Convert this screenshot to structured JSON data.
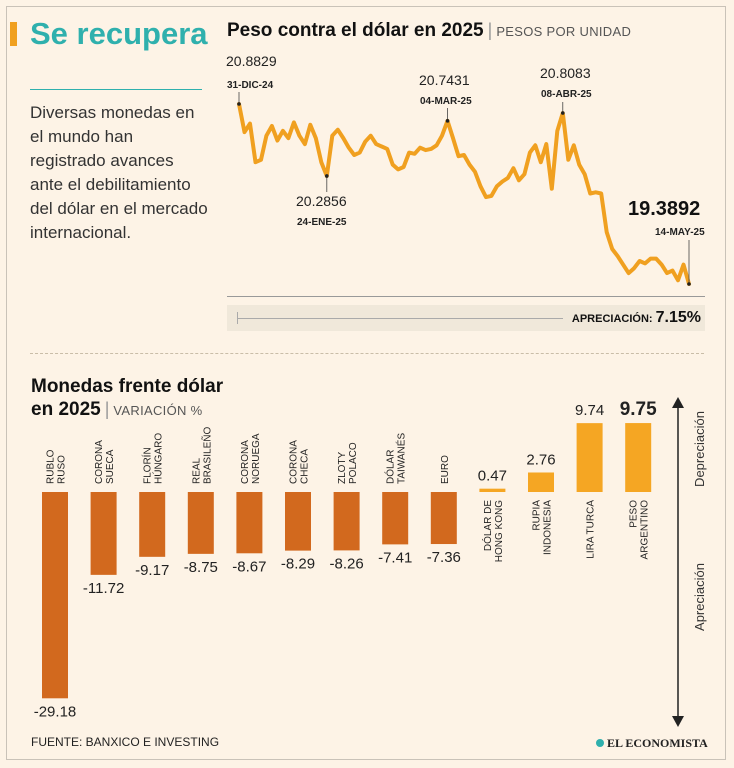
{
  "hero": {
    "title": "Se recupera",
    "description": "Diversas monedas en el mundo han registrado avances ante el debilitamiento del dólar en el mercado internacional."
  },
  "line_chart": {
    "title": "Peso contra el dólar en 2025",
    "subtitle": "PESOS POR UNIDAD",
    "annotations": [
      {
        "value": "20.8829",
        "date": "31-DIC-24"
      },
      {
        "value": "20.2856",
        "date": "24-ENE-25"
      },
      {
        "value": "20.7431",
        "date": "04-MAR-25"
      },
      {
        "value": "20.8083",
        "date": "08-ABR-25"
      },
      {
        "value": "19.3892",
        "date": "14-MAY-25"
      }
    ],
    "appreciation_label": "APRECIACIÓN:",
    "appreciation_value": "7.15%"
  },
  "bar_chart": {
    "title_line1": "Monedas frente dólar",
    "title_line2": "en 2025",
    "subtitle": "VARIACIÓN %",
    "up_label": "Depreciación",
    "down_label": "Apreciación"
  },
  "chart_data": [
    {
      "type": "line",
      "title": "Peso contra el dólar en 2025",
      "ylabel": "PESOS POR UNIDAD",
      "series": [
        {
          "values": [
            20.8829,
            20.65,
            20.72,
            20.4,
            20.42,
            20.62,
            20.7,
            20.58,
            20.66,
            20.6,
            20.73,
            20.62,
            20.55,
            20.71,
            20.6,
            20.4,
            20.2856,
            20.62,
            20.67,
            20.6,
            20.52,
            20.46,
            20.48,
            20.57,
            20.62,
            20.55,
            20.53,
            20.51,
            20.38,
            20.34,
            20.36,
            20.48,
            20.47,
            20.52,
            20.5,
            20.51,
            20.54,
            20.62,
            20.7431,
            20.6,
            20.45,
            20.46,
            20.38,
            20.32,
            20.2,
            20.11,
            20.12,
            20.2,
            20.24,
            20.27,
            20.35,
            20.25,
            20.3,
            20.48,
            20.54,
            20.4,
            20.55,
            20.18,
            20.66,
            20.8083,
            20.42,
            20.54,
            20.38,
            20.3,
            20.14,
            20.15,
            20.14,
            19.82,
            19.68,
            19.62,
            19.55,
            19.48,
            19.52,
            19.58,
            19.56,
            19.6,
            19.6,
            19.55,
            19.48,
            19.5,
            19.42,
            19.55,
            19.3892
          ]
        }
      ]
    },
    {
      "type": "bar",
      "title": "Monedas frente dólar en 2025",
      "ylabel": "VARIACIÓN %",
      "categories": [
        "RUBLO RUSO",
        "CORONA SUECA",
        "FLORÍN HÚNGARO",
        "REAL BRASILEÑO",
        "CORONA NORUEGA",
        "CORONA CHECA",
        "ZLOTY POLACO",
        "DÓLAR TAIWANÉS",
        "EURO",
        "DÓLAR DE HONG KONG",
        "RUPIA INDONESIA",
        "LIRA TURCA",
        "PESO ARGENTINO"
      ],
      "category_lines": [
        [
          "RUBLO",
          "RUSO"
        ],
        [
          "CORONA",
          "SUECA"
        ],
        [
          "FLORÍN",
          "HÚNGARO"
        ],
        [
          "REAL",
          "BRASILEÑO"
        ],
        [
          "CORONA",
          "NORUEGA"
        ],
        [
          "CORONA",
          "CHECA"
        ],
        [
          "ZLOTY",
          "POLACO"
        ],
        [
          "DÓLAR",
          "TAIWANÉS"
        ],
        [
          "EURO"
        ],
        [
          "DÓLAR DE",
          "HONG KONG"
        ],
        [
          "RUPIA",
          "INDONESIA"
        ],
        [
          "LIRA TURCA"
        ],
        [
          "PESO",
          "ARGENTINO"
        ]
      ],
      "values": [
        -29.18,
        -11.72,
        -9.17,
        -8.75,
        -8.67,
        -8.29,
        -8.26,
        -7.41,
        -7.36,
        0.47,
        2.76,
        9.74,
        9.75
      ],
      "labels": [
        "-29.18",
        "-11.72",
        "-9.17",
        "-8.75",
        "-8.67",
        "-8.29",
        "-8.26",
        "-7.41",
        "-7.36",
        "0.47",
        "2.76",
        "9.74",
        "9.75"
      ]
    }
  ],
  "colors": {
    "line": "#f0a020",
    "negative_bar": "#d2691e",
    "positive_bar": "#f5a623",
    "title_accent": "#2fb0ad"
  },
  "footer": {
    "source": "FUENTE: BANXICO E INVESTING",
    "logo": "EL ECONOMISTA"
  }
}
